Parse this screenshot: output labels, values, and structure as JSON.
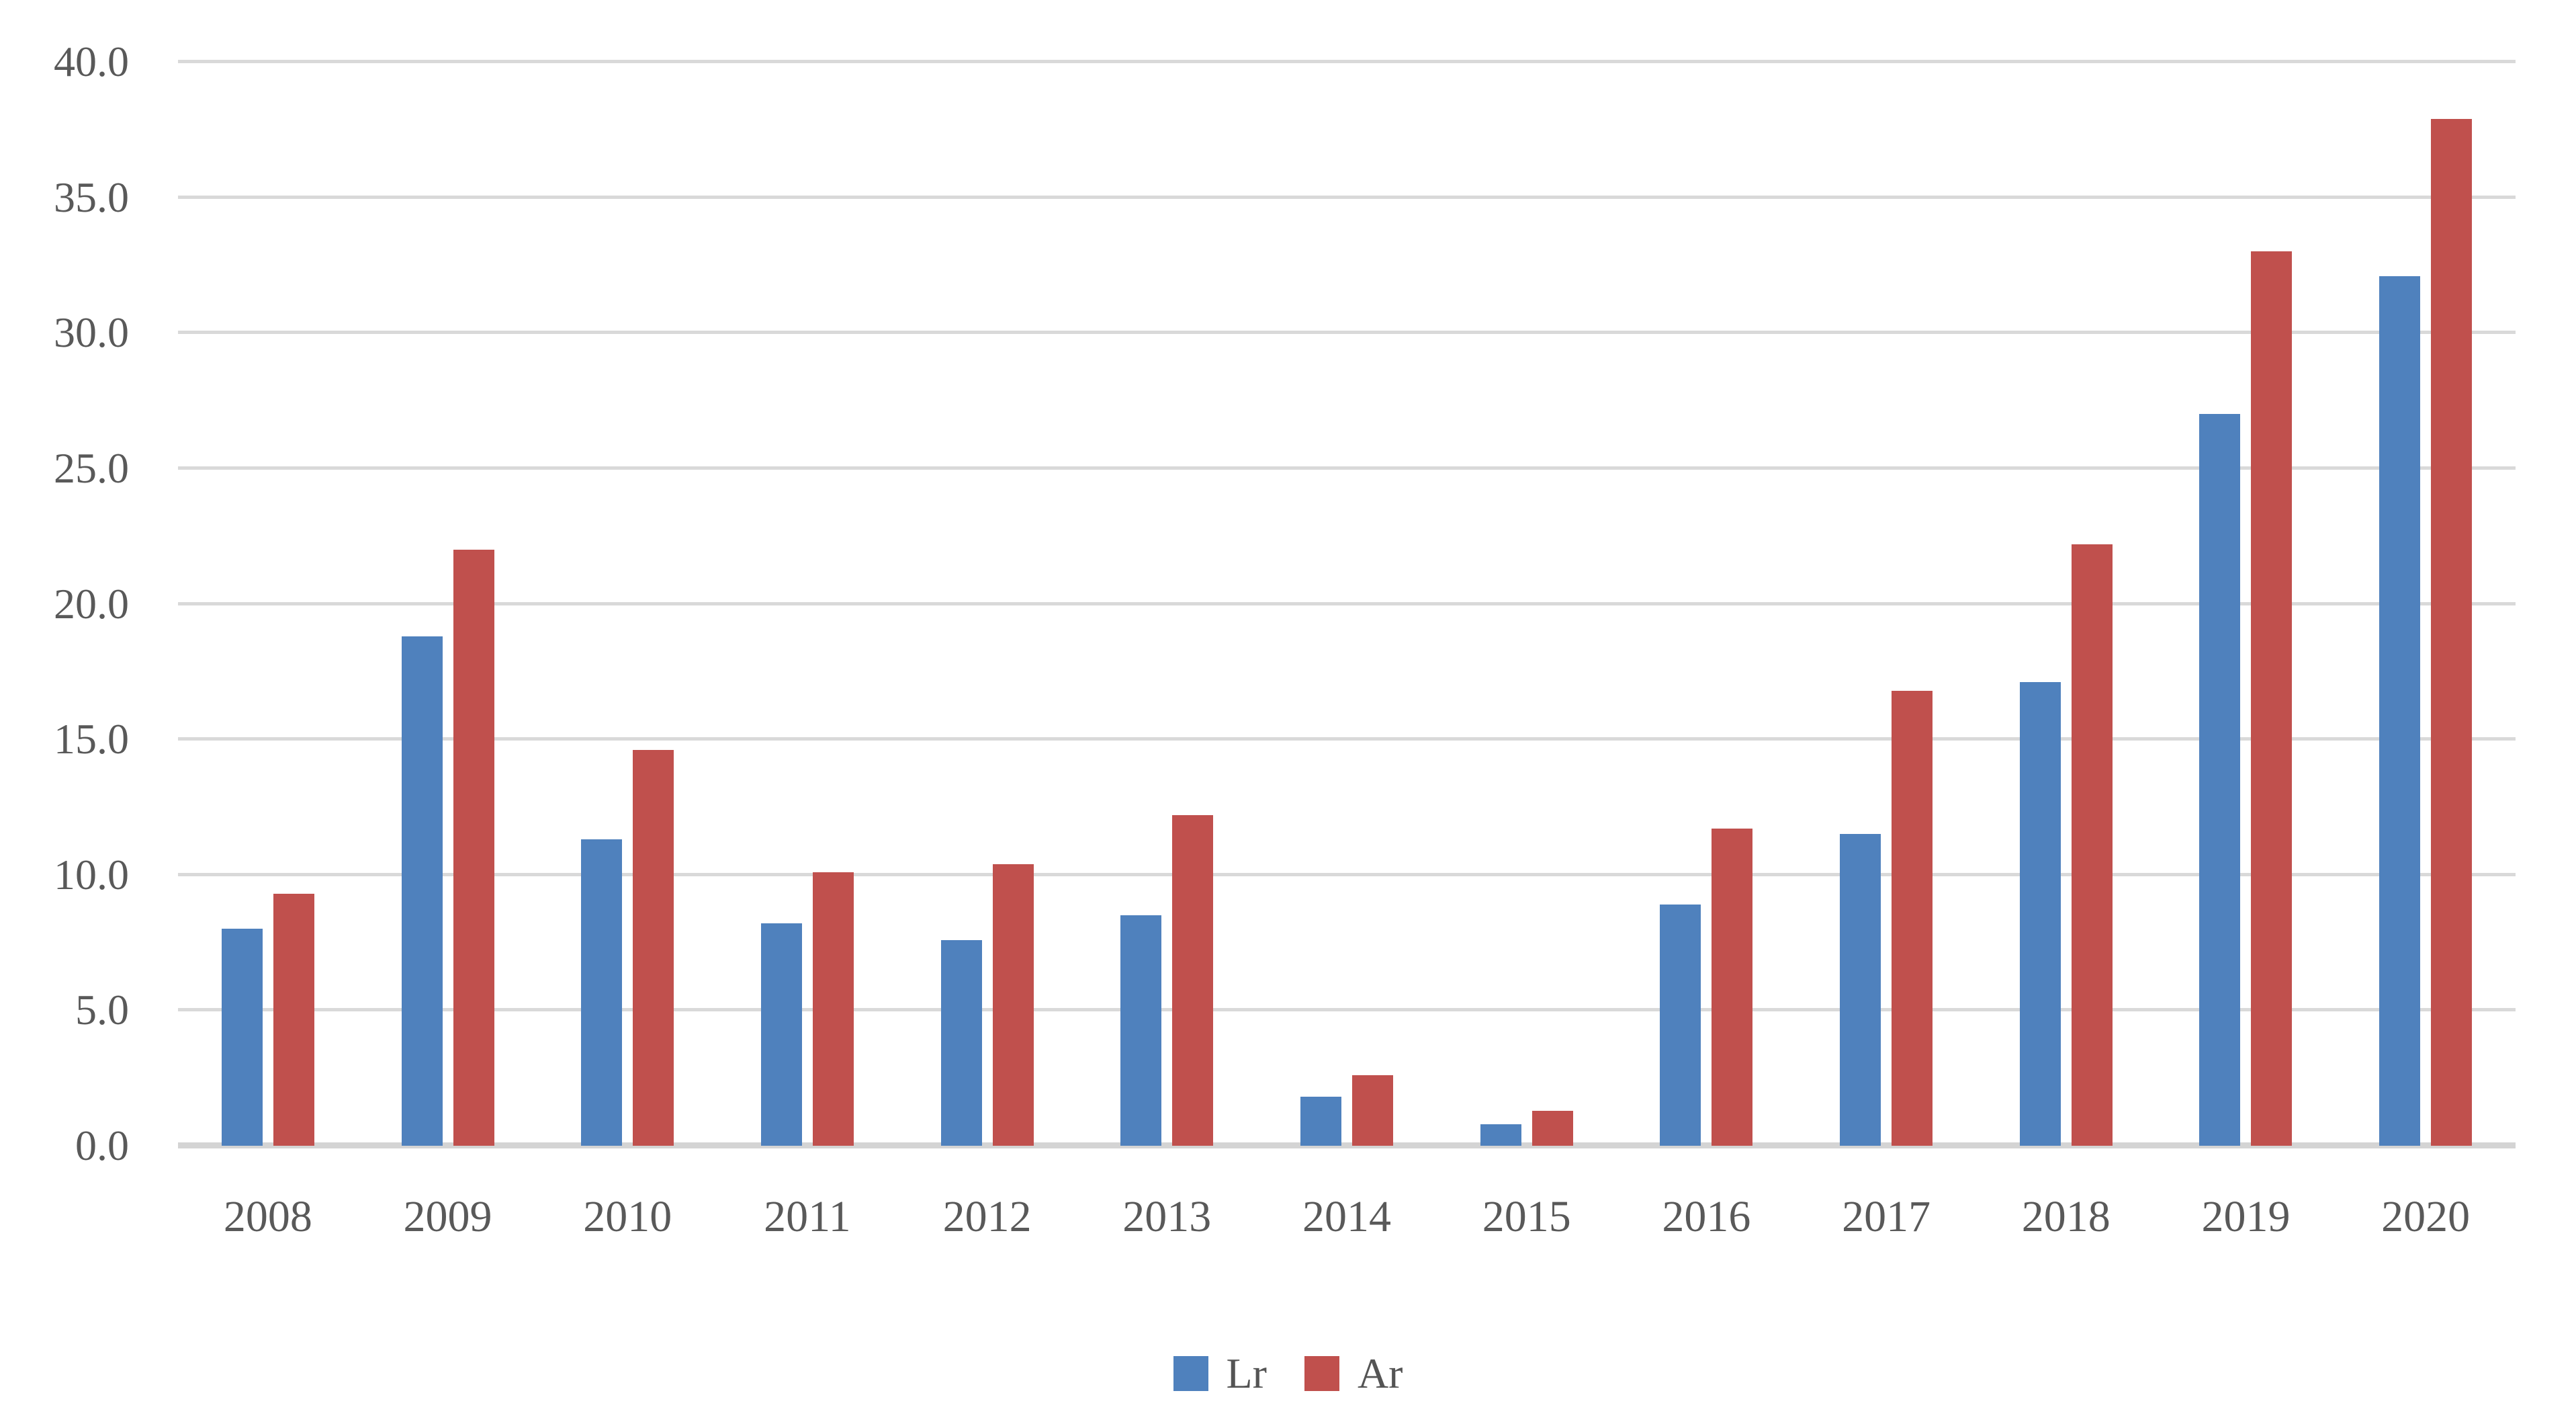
{
  "chart_data": {
    "type": "bar",
    "title": "",
    "xlabel": "",
    "ylabel": "",
    "categories": [
      "2008",
      "2009",
      "2010",
      "2011",
      "2012",
      "2013",
      "2014",
      "2015",
      "2016",
      "2017",
      "2018",
      "2019",
      "2020"
    ],
    "series": [
      {
        "name": "Lr",
        "color": "#4F81BD",
        "values": [
          8.0,
          18.8,
          11.3,
          8.2,
          7.6,
          8.5,
          1.8,
          0.8,
          8.9,
          11.5,
          17.1,
          27.0,
          32.1
        ]
      },
      {
        "name": "Ar",
        "color": "#C0504D",
        "values": [
          9.3,
          22.0,
          14.6,
          10.1,
          10.4,
          12.2,
          2.6,
          1.3,
          11.7,
          16.8,
          22.2,
          33.0,
          37.9
        ]
      }
    ],
    "ylim": [
      0,
      40
    ],
    "y_tick_step": 5,
    "y_tick_labels": [
      "0.0",
      "5.0",
      "10.0",
      "15.0",
      "20.0",
      "25.0",
      "30.0",
      "35.0",
      "40.0"
    ],
    "grid": true,
    "legend_position": "bottom"
  },
  "styles": {
    "background": "#FFFFFF",
    "grid_color": "#D9D9D9",
    "baseline_color": "#D4D4D4",
    "axis_text_color": "#595959",
    "series_colors": [
      "#4F81BD",
      "#C0504D"
    ]
  }
}
